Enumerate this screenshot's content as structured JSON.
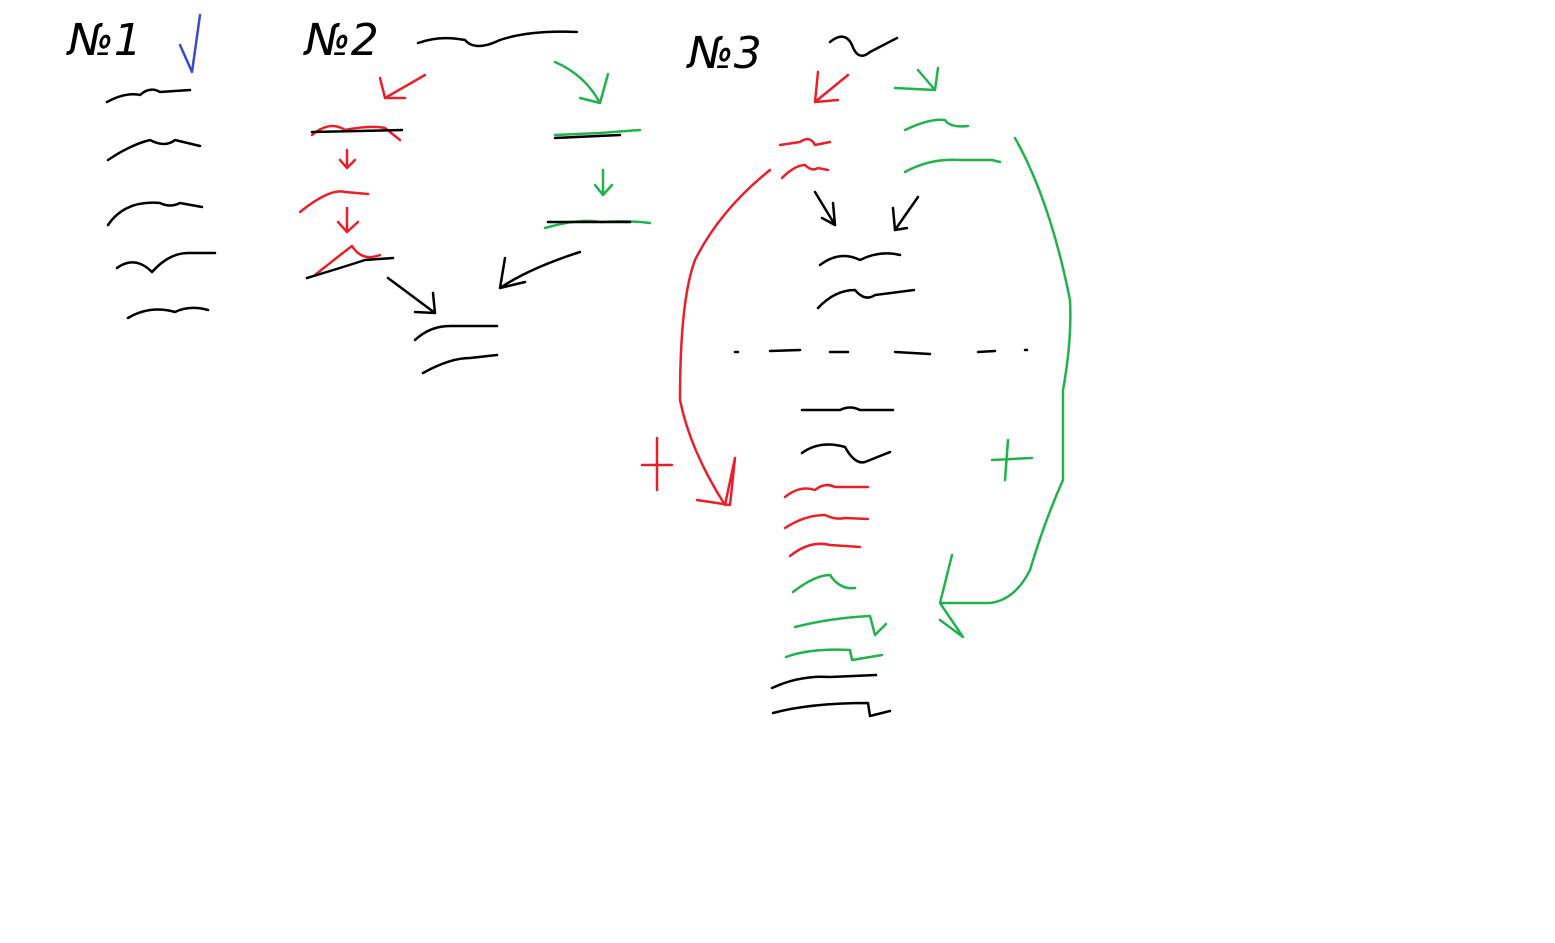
{
  "labels": [
    "№1",
    "№2",
    "№3"
  ]
}
